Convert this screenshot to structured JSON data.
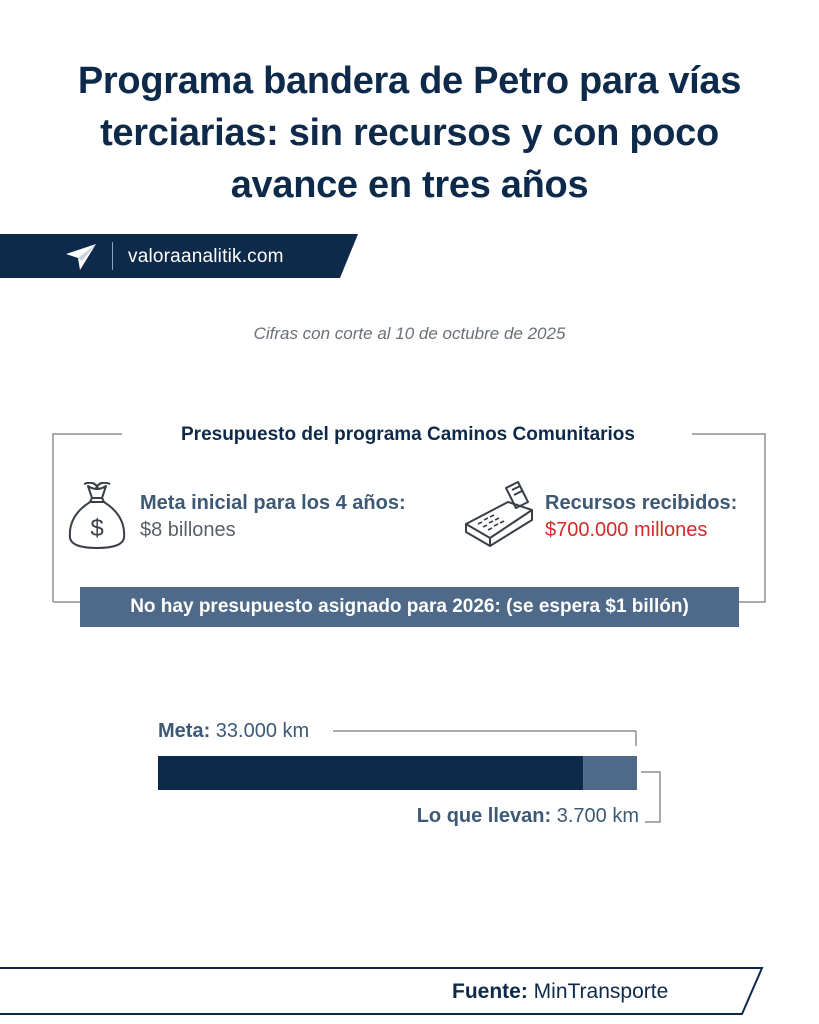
{
  "title": "Programa bandera de Petro para vías terciarias: sin recursos y con poco avance en tres años",
  "brand": {
    "site": "valoraanalitik.com",
    "logo_icon": "paper-plane-icon",
    "band_color": "#0e2a4a"
  },
  "subtitle": "Cifras con corte al 10 de octubre de 2025",
  "budget_box": {
    "title": "Presupuesto del programa Caminos Comunitarios",
    "goal": {
      "icon": "money-bag-icon",
      "label": "Meta inicial para los 4 años:",
      "value": "$8 billones"
    },
    "received": {
      "icon": "payment-terminal-icon",
      "label": "Recursos recibidos:",
      "value": "$700.000 millones",
      "value_color": "#d42a2a"
    },
    "note": "No hay presupuesto asignado para 2026: (se espera $1 billón)"
  },
  "chart_data": {
    "type": "bar",
    "orientation": "horizontal",
    "unit": "km",
    "series": [
      {
        "label": "Meta:",
        "value": 33000,
        "display": "33.000 km",
        "color": "#0e2a4a"
      },
      {
        "label": "Lo que llevan:",
        "value": 3700,
        "display": "3.700 km",
        "color": "#4f6a88"
      }
    ]
  },
  "source": {
    "label": "Fuente:",
    "value": "MinTransporte"
  }
}
